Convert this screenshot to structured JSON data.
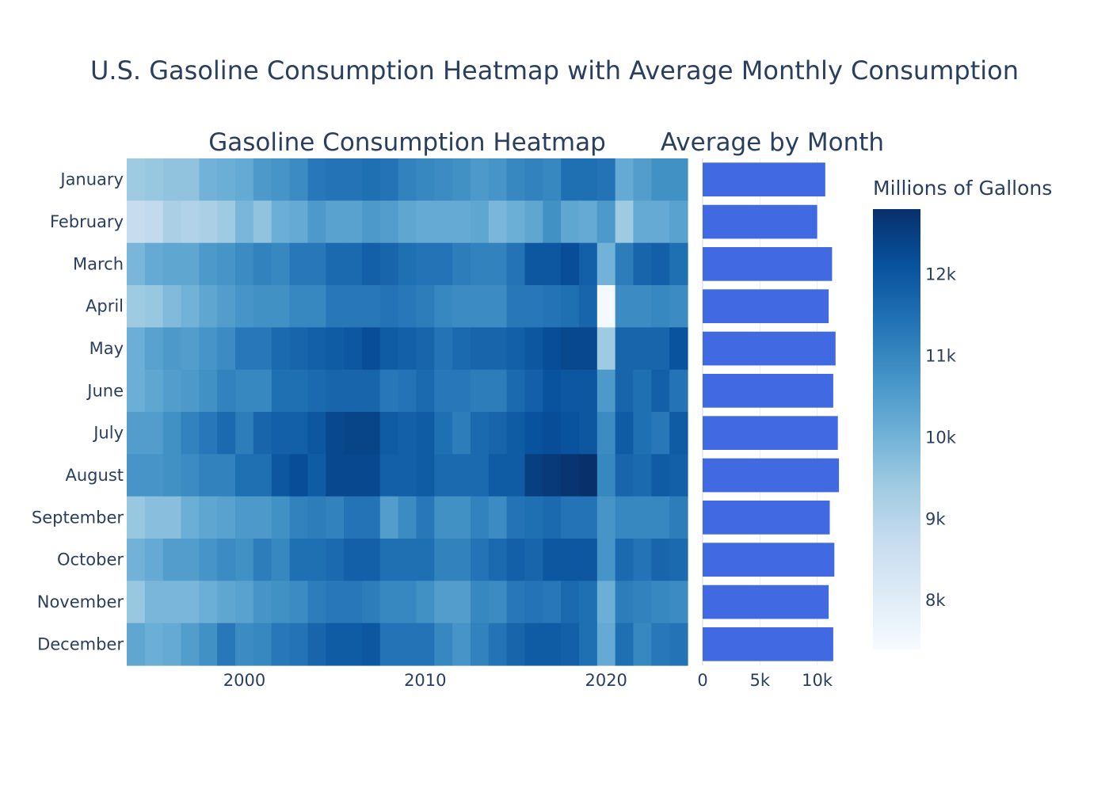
{
  "title": "U.S. Gasoline Consumption Heatmap with Average Monthly Consumption",
  "chart_data": [
    {
      "type": "heatmap",
      "title": "Gasoline Consumption Heatmap",
      "x": [
        1994,
        1995,
        1996,
        1997,
        1998,
        1999,
        2000,
        2001,
        2002,
        2003,
        2004,
        2005,
        2006,
        2007,
        2008,
        2009,
        2010,
        2011,
        2012,
        2013,
        2014,
        2015,
        2016,
        2017,
        2018,
        2019,
        2020,
        2021,
        2022,
        2023,
        2024
      ],
      "x_ticks": [
        2000,
        2010,
        2020
      ],
      "x_tick_labels": [
        "2000",
        "2010",
        "2020"
      ],
      "categories": [
        "January",
        "February",
        "March",
        "April",
        "May",
        "June",
        "July",
        "August",
        "September",
        "October",
        "November",
        "December"
      ],
      "values": [
        [
          9400,
          9500,
          9600,
          9600,
          10000,
          10100,
          10200,
          10600,
          10700,
          10900,
          11300,
          11400,
          11400,
          11500,
          11400,
          11100,
          11000,
          10900,
          10800,
          10600,
          10700,
          11000,
          11100,
          11000,
          11500,
          11500,
          11400,
          10200,
          10500,
          10800,
          10800
        ],
        [
          8700,
          8800,
          9200,
          9100,
          9200,
          9400,
          9900,
          9600,
          10100,
          10200,
          10600,
          10400,
          10400,
          10600,
          10500,
          10300,
          10200,
          10200,
          10200,
          10300,
          9900,
          10100,
          10300,
          10800,
          10300,
          10200,
          10600,
          9400,
          10200,
          10200,
          10400
        ],
        [
          9900,
          10200,
          10300,
          10300,
          10600,
          10700,
          10900,
          11100,
          11000,
          11300,
          11300,
          11600,
          11600,
          11800,
          11700,
          11500,
          11400,
          11400,
          11200,
          11100,
          11100,
          11400,
          12000,
          12000,
          12200,
          11800,
          10000,
          11200,
          11700,
          11800,
          11500
        ],
        [
          9400,
          9500,
          9800,
          10000,
          10300,
          10500,
          10700,
          10800,
          10800,
          11000,
          11000,
          11300,
          11300,
          11300,
          11400,
          11300,
          11200,
          11000,
          10900,
          10900,
          10900,
          11300,
          11300,
          11400,
          11500,
          11700,
          7500,
          10900,
          10900,
          11000,
          10900
        ],
        [
          10100,
          10400,
          10600,
          10500,
          10700,
          10900,
          11300,
          11300,
          11600,
          11700,
          11800,
          11900,
          12000,
          12200,
          11900,
          11800,
          11700,
          11400,
          11600,
          11700,
          11700,
          11800,
          12000,
          12200,
          12300,
          12300,
          9400,
          11700,
          11700,
          11700,
          12100
        ],
        [
          10100,
          10300,
          10500,
          10600,
          10800,
          11100,
          11000,
          11000,
          11500,
          11500,
          11600,
          11700,
          11700,
          11700,
          11300,
          11400,
          11600,
          11300,
          11300,
          11200,
          11200,
          11600,
          11800,
          12100,
          12000,
          12000,
          10600,
          11700,
          11500,
          11800,
          11400
        ],
        [
          10500,
          10500,
          10800,
          11100,
          11300,
          11600,
          11200,
          11700,
          11800,
          11800,
          12000,
          12300,
          12400,
          12400,
          11900,
          11800,
          11900,
          11500,
          11200,
          11600,
          11700,
          11900,
          12100,
          12200,
          12100,
          12000,
          10900,
          11900,
          11500,
          11300,
          11900
        ],
        [
          10700,
          10700,
          10800,
          10900,
          11100,
          11100,
          11500,
          11500,
          12000,
          12200,
          11900,
          12300,
          12300,
          12300,
          11800,
          11800,
          11900,
          11600,
          11600,
          11600,
          11900,
          11900,
          12500,
          12600,
          12700,
          12800,
          11000,
          11700,
          11600,
          11900,
          11800
        ],
        [
          9500,
          9700,
          9700,
          10100,
          10300,
          10400,
          10600,
          10600,
          10800,
          11100,
          11200,
          11100,
          11400,
          11400,
          10500,
          10900,
          11300,
          10800,
          10800,
          11100,
          10900,
          11400,
          11500,
          11600,
          11400,
          11400,
          10700,
          11000,
          11000,
          11000,
          11200
        ],
        [
          10000,
          10200,
          10500,
          10500,
          10700,
          10900,
          10800,
          11200,
          11000,
          11500,
          11500,
          11600,
          11800,
          11800,
          11500,
          11500,
          11500,
          11100,
          11100,
          11400,
          11600,
          11800,
          11700,
          12000,
          12000,
          12000,
          10700,
          11600,
          11400,
          11700,
          11600
        ],
        [
          9500,
          9900,
          9900,
          9900,
          10100,
          10300,
          10400,
          10700,
          10800,
          10900,
          11200,
          11300,
          11300,
          11200,
          11000,
          11000,
          10800,
          10500,
          10500,
          11000,
          10900,
          11300,
          11400,
          11300,
          11600,
          11500,
          10100,
          11200,
          11100,
          11000,
          10900
        ],
        [
          10300,
          10100,
          10200,
          10500,
          10800,
          11300,
          10900,
          11000,
          11300,
          11400,
          11700,
          11900,
          11900,
          12000,
          11400,
          11400,
          11400,
          11000,
          10700,
          11100,
          11400,
          11700,
          11900,
          11900,
          11800,
          11500,
          10200,
          11500,
          11000,
          11300,
          11400
        ]
      ]
    },
    {
      "type": "bar",
      "title": "Average by Month",
      "orientation": "horizontal",
      "categories": [
        "January",
        "February",
        "March",
        "April",
        "May",
        "June",
        "July",
        "August",
        "September",
        "October",
        "November",
        "December"
      ],
      "values": [
        10700,
        10000,
        11300,
        11000,
        11600,
        11400,
        11800,
        11900,
        11100,
        11500,
        11000,
        11400
      ],
      "x_ticks": [
        0,
        5000,
        10000
      ],
      "x_tick_labels": [
        "0",
        "5k",
        "10k"
      ],
      "xlim": [
        0,
        12100
      ],
      "color": "#4169e1"
    }
  ],
  "colorbar": {
    "title": "Millions of Gallons",
    "min": 7400,
    "max": 12800,
    "ticks": [
      8000,
      9000,
      10000,
      11000,
      12000
    ],
    "tick_labels": [
      "8k",
      "9k",
      "10k",
      "11k",
      "12k"
    ],
    "scale": [
      "#f7fbff",
      "#deebf7",
      "#c6dbef",
      "#9ecae1",
      "#6baed6",
      "#4292c6",
      "#2171b5",
      "#08519c",
      "#08306b"
    ]
  }
}
